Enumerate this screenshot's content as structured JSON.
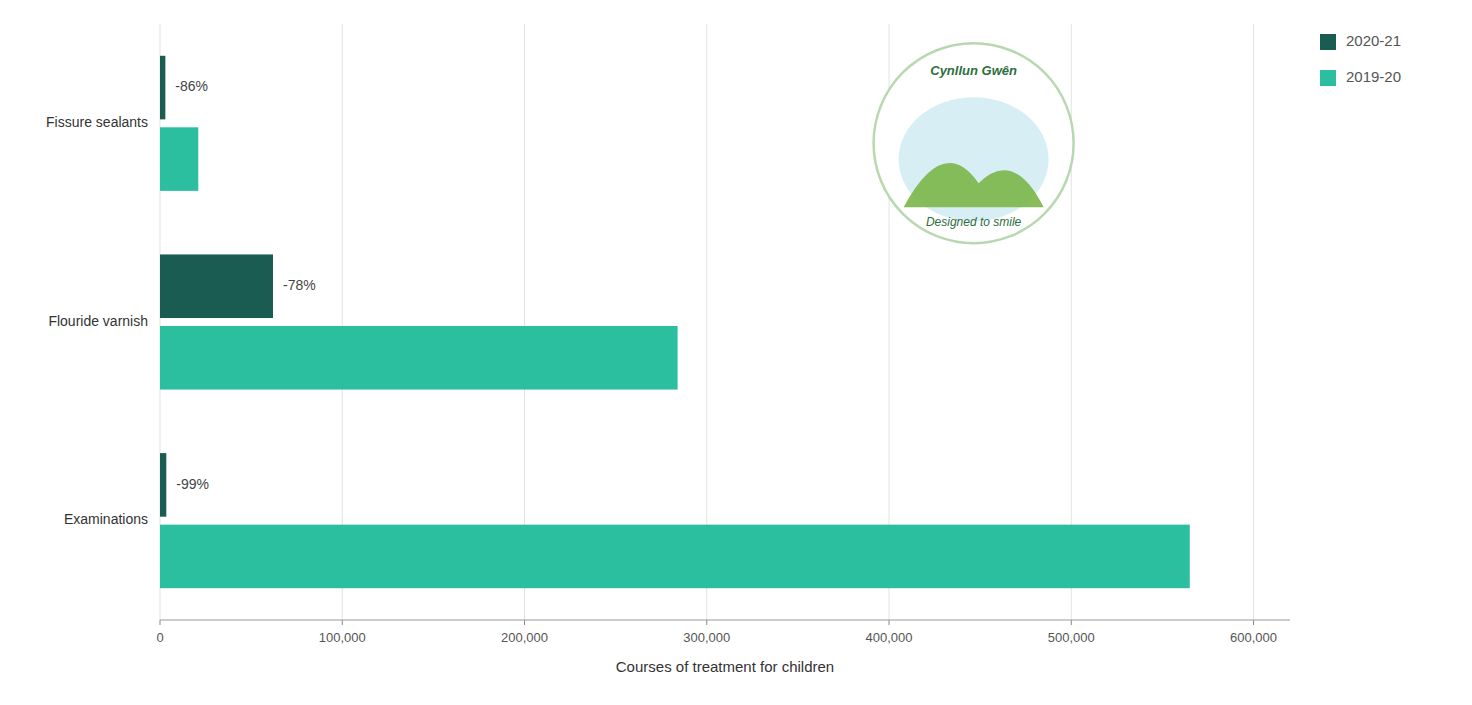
{
  "chart_data": {
    "type": "bar",
    "orientation": "horizontal",
    "categories": [
      "Examinations",
      "Flouride varnish",
      "Fissure sealants"
    ],
    "series": [
      {
        "name": "2020-21",
        "color": "#1a5c52",
        "values": [
          3463,
          62000,
          2940
        ]
      },
      {
        "name": "2019-20",
        "color": "#2bbf9f",
        "values": [
          565000,
          284000,
          21000
        ]
      }
    ],
    "annotations": [
      "-99%",
      "-78%",
      "-86%"
    ],
    "xlabel": "Courses of treatment for children",
    "xlim": [
      0,
      620000
    ],
    "xticks": [
      0,
      {
        "value": 100000,
        "label": "100,000"
      },
      {
        "value": 200000,
        "label": "200,000"
      },
      {
        "value": 300000,
        "label": "300,000"
      },
      {
        "value": 400000,
        "label": "400,000"
      },
      {
        "value": 500000,
        "label": "500,000"
      },
      {
        "value": 600000,
        "label": "600,000"
      }
    ],
    "grid": true,
    "legend": "upper right",
    "logo_texts": [
      "Cynllun Gwên",
      "Designed to smile"
    ]
  }
}
